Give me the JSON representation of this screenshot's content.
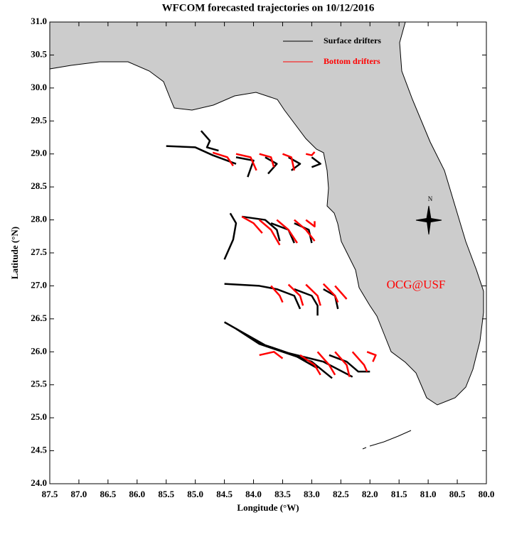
{
  "chart_data": {
    "type": "trajectory",
    "title": "WFCOM forecasted trajectories on 10/12/2016",
    "x_label": "Longitude (°W)",
    "y_label": "Latitude (°N)",
    "xlim": [
      87.5,
      80.0
    ],
    "ylim": [
      24.0,
      31.0
    ],
    "xticks": [
      87.5,
      {
        "value": 87,
        "label": "87.0"
      },
      86.5,
      {
        "value": 86,
        "label": "86.0"
      },
      85.5,
      {
        "value": 85,
        "label": "85.0"
      },
      84.5,
      {
        "value": 84,
        "label": "84.0"
      },
      83.5,
      {
        "value": 83,
        "label": "83.0"
      },
      82.5,
      {
        "value": 82,
        "label": "82.0"
      },
      81.5,
      {
        "value": 81,
        "label": "81.0"
      },
      80.5,
      {
        "value": 80,
        "label": "80.0"
      }
    ],
    "yticks": [
      {
        "value": 24,
        "label": "24.0"
      },
      24.5,
      {
        "value": 25,
        "label": "25.0"
      },
      25.5,
      {
        "value": 26,
        "label": "26.0"
      },
      26.5,
      {
        "value": 27,
        "label": "27.0"
      },
      27.5,
      {
        "value": 28,
        "label": "28.0"
      },
      28.5,
      {
        "value": 29,
        "label": "29.0"
      },
      29.5,
      {
        "value": 30,
        "label": "30.0"
      },
      30.5,
      {
        "value": 31,
        "label": "31.0"
      }
    ],
    "series": [
      {
        "name": "Surface drifters",
        "color": "#000000",
        "tracks": [
          {
            "x": [
              85.5,
              85.0,
              84.7,
              84.3
            ],
            "y": [
              29.12,
              29.1,
              28.98,
              28.85
            ]
          },
          {
            "x": [
              84.9,
              84.75,
              84.8,
              84.6
            ],
            "y": [
              29.35,
              29.2,
              29.1,
              29.05
            ]
          },
          {
            "x": [
              84.3,
              84.0,
              84.1
            ],
            "y": [
              28.95,
              28.9,
              28.65
            ]
          },
          {
            "x": [
              83.8,
              83.6,
              83.75
            ],
            "y": [
              28.95,
              28.85,
              28.7
            ]
          },
          {
            "x": [
              83.4,
              83.2,
              83.35
            ],
            "y": [
              28.95,
              28.85,
              28.75
            ]
          },
          {
            "x": [
              83.0,
              82.85,
              83.0
            ],
            "y": [
              28.95,
              28.85,
              28.8
            ]
          },
          {
            "x": [
              84.4,
              84.3,
              84.35,
              84.5
            ],
            "y": [
              28.1,
              27.95,
              27.7,
              27.4
            ]
          },
          {
            "x": [
              84.2,
              83.8,
              83.6,
              83.55
            ],
            "y": [
              28.05,
              28.0,
              27.85,
              27.68
            ]
          },
          {
            "x": [
              83.7,
              83.4,
              83.3
            ],
            "y": [
              27.95,
              27.85,
              27.65
            ]
          },
          {
            "x": [
              83.3,
              83.05,
              83.0
            ],
            "y": [
              27.95,
              27.85,
              27.65
            ]
          },
          {
            "x": [
              84.5,
              83.9,
              83.6,
              83.3,
              83.2
            ],
            "y": [
              27.03,
              27.0,
              26.95,
              26.85,
              26.65
            ]
          },
          {
            "x": [
              83.3,
              83.0,
              82.9,
              82.9
            ],
            "y": [
              26.95,
              26.85,
              26.7,
              26.55
            ]
          },
          {
            "x": [
              82.8,
              82.6,
              82.55
            ],
            "y": [
              26.95,
              26.85,
              26.65
            ]
          },
          {
            "x": [
              84.5,
              84.2,
              83.8,
              83.3,
              82.9
            ],
            "y": [
              26.45,
              26.3,
              26.1,
              25.95,
              25.75
            ]
          },
          {
            "x": [
              84.3,
              83.9,
              83.4,
              83.0,
              82.65
            ],
            "y": [
              26.35,
              26.12,
              25.97,
              25.85,
              25.6
            ]
          },
          {
            "x": [
              83.8,
              83.4,
              82.8,
              82.3
            ],
            "y": [
              26.1,
              25.98,
              25.85,
              25.62
            ]
          },
          {
            "x": [
              82.7,
              82.4,
              82.2,
              82.0
            ],
            "y": [
              25.95,
              25.85,
              25.7,
              25.7
            ]
          }
        ]
      },
      {
        "name": "Bottom drifters",
        "color": "#ff0000",
        "tracks": [
          {
            "x": [
              84.7,
              84.45,
              84.35
            ],
            "y": [
              29.02,
              28.95,
              28.82
            ]
          },
          {
            "x": [
              84.3,
              84.05,
              83.95
            ],
            "y": [
              29.0,
              28.95,
              28.75
            ]
          },
          {
            "x": [
              83.9,
              83.7,
              83.65
            ],
            "y": [
              29.0,
              28.95,
              28.8
            ]
          },
          {
            "x": [
              83.5,
              83.35,
              83.3
            ],
            "y": [
              29.0,
              28.95,
              28.75
            ]
          },
          {
            "x": [
              83.1,
              83.0,
              82.95
            ],
            "y": [
              29.0,
              28.98,
              29.03
            ]
          },
          {
            "x": [
              84.2,
              84.0,
              83.85
            ],
            "y": [
              28.05,
              27.95,
              27.8
            ]
          },
          {
            "x": [
              83.9,
              83.7,
              83.55
            ],
            "y": [
              28.0,
              27.85,
              27.62
            ]
          },
          {
            "x": [
              83.6,
              83.4,
              83.25
            ],
            "y": [
              28.0,
              27.85,
              27.65
            ]
          },
          {
            "x": [
              83.3,
              83.1,
              82.95
            ],
            "y": [
              28.0,
              27.85,
              27.68
            ]
          },
          {
            "x": [
              83.1,
              82.95,
              82.95
            ],
            "y": [
              28.0,
              27.9,
              27.98
            ]
          },
          {
            "x": [
              83.7,
              83.55,
              83.5
            ],
            "y": [
              27.0,
              26.85,
              26.75
            ]
          },
          {
            "x": [
              83.4,
              83.2,
              83.15
            ],
            "y": [
              27.02,
              26.85,
              26.7
            ]
          },
          {
            "x": [
              83.1,
              82.9,
              82.85
            ],
            "y": [
              27.02,
              26.85,
              26.7
            ]
          },
          {
            "x": [
              82.8,
              82.6,
              82.55
            ],
            "y": [
              27.03,
              26.85,
              26.75
            ]
          },
          {
            "x": [
              82.6,
              82.45,
              82.4
            ],
            "y": [
              27.0,
              26.85,
              26.8
            ]
          },
          {
            "x": [
              83.9,
              83.65,
              83.5
            ],
            "y": [
              25.95,
              26.0,
              25.9
            ]
          },
          {
            "x": [
              83.2,
              82.95,
              82.85
            ],
            "y": [
              25.95,
              25.8,
              25.65
            ]
          },
          {
            "x": [
              82.9,
              82.7,
              82.6
            ],
            "y": [
              26.0,
              25.8,
              25.65
            ]
          },
          {
            "x": [
              82.6,
              82.4,
              82.35
            ],
            "y": [
              26.0,
              25.8,
              25.62
            ]
          },
          {
            "x": [
              82.3,
              82.1,
              82.05
            ],
            "y": [
              26.0,
              25.8,
              25.7
            ]
          },
          {
            "x": [
              82.05,
              81.9,
              81.95
            ],
            "y": [
              26.0,
              25.95,
              25.85
            ]
          }
        ]
      }
    ],
    "annotations": [
      {
        "text": "OCG@USF",
        "color": "#ff0000"
      },
      {
        "text": "N",
        "color": "#000000"
      }
    ]
  }
}
